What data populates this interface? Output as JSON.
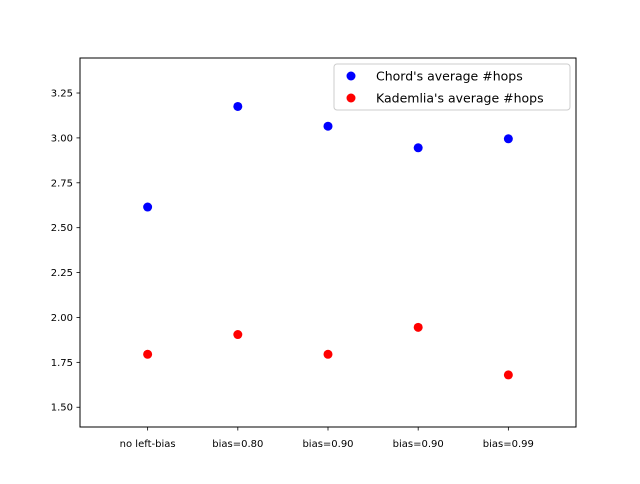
{
  "chart_data": {
    "type": "scatter",
    "title": "",
    "xlabel": "",
    "ylabel": "",
    "categories": [
      "no left-bias",
      "bias=0.80",
      "bias=0.90",
      "bias=0.90",
      "bias=0.99"
    ],
    "ylim": [
      1.39,
      3.445
    ],
    "yticks": [
      "1.50",
      "1.75",
      "2.00",
      "2.25",
      "2.50",
      "2.75",
      "3.00",
      "3.25"
    ],
    "grid": false,
    "legend_position": "top-right",
    "series": [
      {
        "name": "Chord's average #hops",
        "color": "#0000ff",
        "values": [
          2.615,
          3.175,
          3.065,
          2.945,
          2.995
        ]
      },
      {
        "name": "Kademlia's average #hops",
        "color": "#ff0000",
        "values": [
          1.795,
          1.905,
          1.795,
          1.945,
          1.68
        ]
      }
    ]
  }
}
